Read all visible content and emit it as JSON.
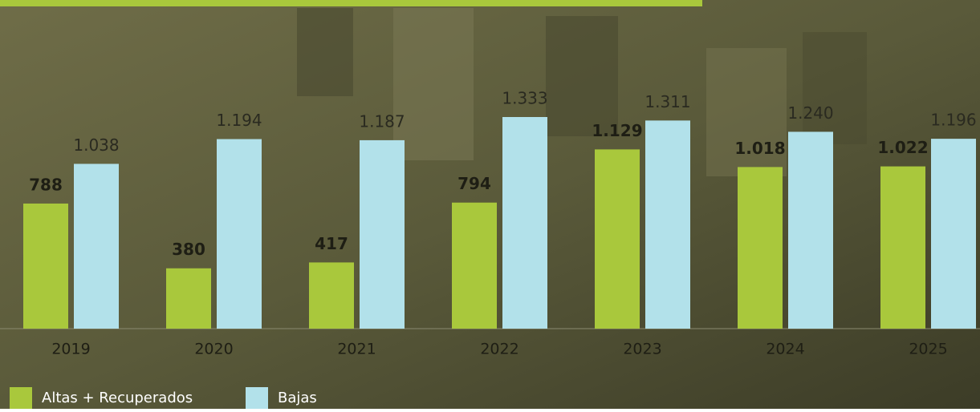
{
  "chart_data": {
    "type": "bar",
    "categories": [
      "2019",
      "2020",
      "2021",
      "2022",
      "2023",
      "2024",
      "2025"
    ],
    "series": [
      {
        "name": "Altas + Recuperados",
        "color": "#a9c83c",
        "values": [
          788,
          380,
          417,
          794,
          1129,
          1018,
          1022
        ],
        "value_labels": [
          "788",
          "380",
          "417",
          "794",
          "1.129",
          "1.018",
          "1.022"
        ]
      },
      {
        "name": "Bajas",
        "color": "#b2e1ea",
        "values": [
          1038,
          1194,
          1187,
          1333,
          1311,
          1240,
          1196
        ],
        "value_labels": [
          "1.038",
          "1.194",
          "1.187",
          "1.333",
          "1.311",
          "1.240",
          "1.196"
        ]
      }
    ]
  }
}
